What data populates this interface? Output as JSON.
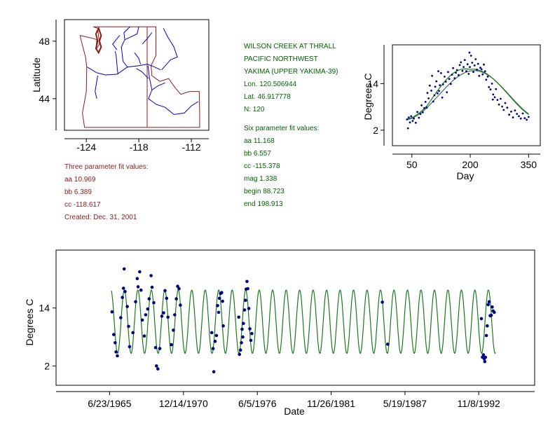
{
  "station": {
    "name": "WILSON CREEK AT THRALL",
    "region": "PACIFIC NORTHWEST",
    "basin": "YAKIMA (UPPER YAKIMA-39)",
    "lon": "Lon. 120.506944",
    "lat": "Lat. 46.917778",
    "n": "N: 120"
  },
  "three_param": {
    "heading": "Three parameter fit values:",
    "aa": "aa 10.969",
    "bb": "bb 6.389",
    "cc": "cc -118.617",
    "created": "Created:   Dec. 31, 2001"
  },
  "six_param": {
    "heading": "Six parameter fit values:",
    "aa": "aa 11.168",
    "bb": "bb 6.557",
    "cc": "cc -115.378",
    "mag": "mag 1.338",
    "begin": "begin 88.723",
    "end": "end 198.913"
  },
  "colors": {
    "map_border": "#8b1a1a",
    "river": "#0000cc",
    "text_red": "#8b1a1a",
    "text_green": "#006400",
    "fit_line": "#1a7a1a",
    "points": "#000080"
  },
  "chart_data": [
    {
      "type": "map",
      "ylabel": "Latitude",
      "xticks": [
        "-124",
        "-118",
        "-112"
      ],
      "yticks": [
        "48",
        "44"
      ],
      "xlim": [
        -126.5,
        -110
      ],
      "ylim": [
        41.8,
        49.5
      ]
    },
    {
      "type": "scatter",
      "xlabel": "Day",
      "ylabel": "Degrees C",
      "xticks": [
        "50",
        "200",
        "350"
      ],
      "yticks": [
        "2",
        "14"
      ],
      "xlim": [
        0,
        380
      ],
      "ylim": [
        -2,
        24
      ],
      "fit_three": {
        "aa": 10.969,
        "bb": 6.389,
        "cc": -118.617
      },
      "fit_six": {
        "aa": 11.168,
        "bb": 6.557,
        "cc": -115.378,
        "mag": 1.338,
        "begin": 88.723,
        "end": 198.913
      },
      "points": [
        [
          38,
          4.8
        ],
        [
          40,
          2.5
        ],
        [
          42,
          5.3
        ],
        [
          45,
          4.0
        ],
        [
          48,
          5.6
        ],
        [
          52,
          4.4
        ],
        [
          55,
          5.0
        ],
        [
          60,
          3.9
        ],
        [
          64,
          6.7
        ],
        [
          68,
          5.2
        ],
        [
          72,
          6.2
        ],
        [
          75,
          8.4
        ],
        [
          78,
          6.6
        ],
        [
          82,
          7.7
        ],
        [
          85,
          9.3
        ],
        [
          88,
          7.8
        ],
        [
          90,
          11.6
        ],
        [
          93,
          10.2
        ],
        [
          96,
          13.5
        ],
        [
          100,
          12.2
        ],
        [
          102,
          16.0
        ],
        [
          105,
          9.4
        ],
        [
          108,
          11.0
        ],
        [
          110,
          13.2
        ],
        [
          113,
          14.6
        ],
        [
          116,
          11.5
        ],
        [
          120,
          12.1
        ],
        [
          122,
          13.6
        ],
        [
          125,
          16.7
        ],
        [
          128,
          10.4
        ],
        [
          130,
          13.8
        ],
        [
          134,
          15.8
        ],
        [
          137,
          14.5
        ],
        [
          140,
          11.8
        ],
        [
          143,
          17.0
        ],
        [
          146,
          15.2
        ],
        [
          150,
          13.9
        ],
        [
          153,
          16.3
        ],
        [
          156,
          18.0
        ],
        [
          160,
          15.4
        ],
        [
          163,
          16.8
        ],
        [
          166,
          17.5
        ],
        [
          170,
          16.2
        ],
        [
          173,
          18.8
        ],
        [
          176,
          19.5
        ],
        [
          180,
          17.3
        ],
        [
          183,
          18.3
        ],
        [
          186,
          20.1
        ],
        [
          190,
          17.2
        ],
        [
          193,
          19.0
        ],
        [
          196,
          16.5
        ],
        [
          199,
          18.3
        ],
        [
          202,
          21.2
        ],
        [
          205,
          19.4
        ],
        [
          208,
          17.0
        ],
        [
          211,
          18.7
        ],
        [
          214,
          20.3
        ],
        [
          217,
          17.6
        ],
        [
          220,
          19.1
        ],
        [
          223,
          16.0
        ],
        [
          226,
          18.1
        ],
        [
          229,
          17.7
        ],
        [
          232,
          16.4
        ],
        [
          235,
          18.9
        ],
        [
          238,
          17.2
        ],
        [
          241,
          15.0
        ],
        [
          245,
          15.8
        ],
        [
          248,
          13.1
        ],
        [
          252,
          12.5
        ],
        [
          256,
          14.0
        ],
        [
          259,
          11.2
        ],
        [
          263,
          10.5
        ],
        [
          266,
          12.6
        ],
        [
          270,
          9.8
        ],
        [
          274,
          8.6
        ],
        [
          278,
          10.1
        ],
        [
          282,
          8.1
        ],
        [
          286,
          7.2
        ],
        [
          290,
          9.0
        ],
        [
          295,
          7.8
        ],
        [
          300,
          6.0
        ],
        [
          305,
          6.8
        ],
        [
          310,
          5.3
        ],
        [
          315,
          7.1
        ],
        [
          320,
          6.2
        ],
        [
          325,
          5.6
        ],
        [
          330,
          5.0
        ],
        [
          335,
          6.3
        ],
        [
          340,
          5.1
        ],
        [
          345,
          4.7
        ],
        [
          350,
          5.4
        ],
        [
          118,
          17.2
        ],
        [
          198,
          22.0
        ],
        [
          258,
          9.9
        ]
      ]
    },
    {
      "type": "scatter",
      "xlabel": "Date",
      "ylabel": "Degrees C",
      "xticks": [
        "6/23/1965",
        "12/14/1970",
        "6/5/1976",
        "11/26/1981",
        "5/19/1987",
        "11/8/1992"
      ],
      "yticks": [
        "2",
        "14"
      ],
      "xlim": [
        1961.5,
        1997.0
      ],
      "ylim": [
        -2,
        26
      ],
      "fit": {
        "aa": 11.168,
        "bb": 6.557,
        "cc": -115.378,
        "years": [
          1965.6,
          1994.1
        ]
      },
      "points": [
        [
          1965.65,
          13.2
        ],
        [
          1965.78,
          8.5
        ],
        [
          1965.88,
          6.8
        ],
        [
          1965.95,
          4.9
        ],
        [
          1966.05,
          4.1
        ],
        [
          1966.3,
          12.0
        ],
        [
          1966.42,
          16.2
        ],
        [
          1966.5,
          18.1
        ],
        [
          1966.55,
          22.1
        ],
        [
          1966.62,
          17.4
        ],
        [
          1966.78,
          14.3
        ],
        [
          1966.88,
          10.2
        ],
        [
          1966.95,
          6.0
        ],
        [
          1967.2,
          8.9
        ],
        [
          1967.4,
          15.3
        ],
        [
          1967.52,
          20.1
        ],
        [
          1967.58,
          18.4
        ],
        [
          1967.7,
          21.5
        ],
        [
          1967.8,
          17.7
        ],
        [
          1967.9,
          11.5
        ],
        [
          1968.05,
          8.2
        ],
        [
          1968.15,
          12.6
        ],
        [
          1968.3,
          13.8
        ],
        [
          1968.4,
          15.9
        ],
        [
          1968.55,
          20.7
        ],
        [
          1968.62,
          18.3
        ],
        [
          1968.75,
          15.1
        ],
        [
          1968.88,
          5.8
        ],
        [
          1968.95,
          2.0
        ],
        [
          1969.05,
          1.4
        ],
        [
          1969.2,
          5.6
        ],
        [
          1969.35,
          12.3
        ],
        [
          1969.48,
          13.0
        ],
        [
          1969.58,
          17.6
        ],
        [
          1969.7,
          16.0
        ],
        [
          1969.8,
          12.1
        ],
        [
          1970.05,
          6.4
        ],
        [
          1970.2,
          9.4
        ],
        [
          1970.3,
          12.6
        ],
        [
          1970.42,
          15.9
        ],
        [
          1970.52,
          18.5
        ],
        [
          1970.62,
          18.0
        ],
        [
          1970.72,
          14.6
        ],
        [
          1973.05,
          8.9
        ],
        [
          1973.15,
          5.6
        ],
        [
          1973.2,
          0.8
        ],
        [
          1973.3,
          7.1
        ],
        [
          1973.4,
          8.3
        ],
        [
          1973.48,
          14.5
        ],
        [
          1973.56,
          13.1
        ],
        [
          1973.62,
          16.0
        ],
        [
          1973.7,
          17.0
        ],
        [
          1973.78,
          17.2
        ],
        [
          1973.85,
          15.4
        ],
        [
          1973.9,
          10.3
        ],
        [
          1975.05,
          12.1
        ],
        [
          1975.1,
          4.4
        ],
        [
          1975.18,
          5.3
        ],
        [
          1975.25,
          6.8
        ],
        [
          1975.3,
          9.6
        ],
        [
          1975.35,
          8.0
        ],
        [
          1975.4,
          10.8
        ],
        [
          1975.48,
          13.6
        ],
        [
          1975.55,
          15.6
        ],
        [
          1975.6,
          17.9
        ],
        [
          1975.66,
          19.5
        ],
        [
          1975.72,
          18.0
        ],
        [
          1975.8,
          13.9
        ],
        [
          1975.87,
          9.7
        ],
        [
          1975.95,
          7.3
        ],
        [
          1976.02,
          8.7
        ],
        [
          1985.7,
          15.2
        ],
        [
          1986.1,
          6.5
        ],
        [
          1993.05,
          11.8
        ],
        [
          1993.12,
          3.8
        ],
        [
          1993.2,
          4.3
        ],
        [
          1993.25,
          3.5
        ],
        [
          1993.3,
          2.9
        ],
        [
          1993.35,
          3.8
        ],
        [
          1993.42,
          8.3
        ],
        [
          1993.48,
          10.3
        ],
        [
          1993.55,
          14.7
        ],
        [
          1993.62,
          15.3
        ],
        [
          1993.7,
          12.4
        ],
        [
          1993.78,
          12.5
        ],
        [
          1993.85,
          14.2
        ],
        [
          1993.92,
          13.4
        ],
        [
          1994.0,
          13.1
        ]
      ]
    }
  ]
}
